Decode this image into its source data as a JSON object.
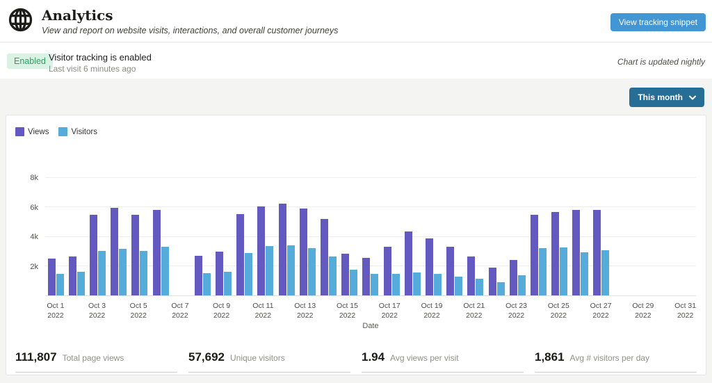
{
  "header": {
    "title": "Analytics",
    "subtitle": "View and report on website visits, interactions, and overall customer journeys",
    "tracking_button": "View tracking snippet"
  },
  "status_bar": {
    "badge": "Enabled",
    "message": "Visitor tracking is enabled",
    "last_visit": "Last visit 6 minutes ago",
    "note": "Chart is updated nightly"
  },
  "toolbar": {
    "range_selector": "This month"
  },
  "chart_data": {
    "type": "bar",
    "title": "",
    "xlabel": "Date",
    "ylabel": "",
    "ylim": [
      0,
      8000
    ],
    "grid": true,
    "legend_position": "top-left",
    "yticks": [
      {
        "value": 2000,
        "label": "2k"
      },
      {
        "value": 4000,
        "label": "4k"
      },
      {
        "value": 6000,
        "label": "6k"
      },
      {
        "value": 8000,
        "label": "8k"
      }
    ],
    "categories": [
      "Oct 1 2022",
      "Oct 2 2022",
      "Oct 3 2022",
      "Oct 4 2022",
      "Oct 5 2022",
      "Oct 6 2022",
      "Oct 7 2022",
      "Oct 8 2022",
      "Oct 9 2022",
      "Oct 10 2022",
      "Oct 11 2022",
      "Oct 12 2022",
      "Oct 13 2022",
      "Oct 14 2022",
      "Oct 15 2022",
      "Oct 16 2022",
      "Oct 17 2022",
      "Oct 18 2022",
      "Oct 19 2022",
      "Oct 20 2022",
      "Oct 21 2022",
      "Oct 22 2022",
      "Oct 23 2022",
      "Oct 24 2022",
      "Oct 25 2022",
      "Oct 26 2022",
      "Oct 27 2022",
      "Oct 28 2022",
      "Oct 29 2022",
      "Oct 30 2022",
      "Oct 31 2022"
    ],
    "x_ticks": [
      {
        "index": 0,
        "line1": "Oct 1",
        "line2": "2022"
      },
      {
        "index": 2,
        "line1": "Oct 3",
        "line2": "2022"
      },
      {
        "index": 4,
        "line1": "Oct 5",
        "line2": "2022"
      },
      {
        "index": 6,
        "line1": "Oct 7",
        "line2": "2022"
      },
      {
        "index": 8,
        "line1": "Oct 9",
        "line2": "2022"
      },
      {
        "index": 10,
        "line1": "Oct 11",
        "line2": "2022"
      },
      {
        "index": 12,
        "line1": "Oct 13",
        "line2": "2022"
      },
      {
        "index": 14,
        "line1": "Oct 15",
        "line2": "2022"
      },
      {
        "index": 16,
        "line1": "Oct 17",
        "line2": "2022"
      },
      {
        "index": 18,
        "line1": "Oct 19",
        "line2": "2022"
      },
      {
        "index": 20,
        "line1": "Oct 21",
        "line2": "2022"
      },
      {
        "index": 22,
        "line1": "Oct 23",
        "line2": "2022"
      },
      {
        "index": 24,
        "line1": "Oct 25",
        "line2": "2022"
      },
      {
        "index": 26,
        "line1": "Oct 27",
        "line2": "2022"
      },
      {
        "index": 28,
        "line1": "Oct 29",
        "line2": "2022"
      },
      {
        "index": 30,
        "line1": "Oct 31",
        "line2": "2022"
      }
    ],
    "series": [
      {
        "name": "Views",
        "color": "#6459c0",
        "values": [
          2500,
          2650,
          5500,
          5950,
          5500,
          5800,
          null,
          2700,
          3000,
          5550,
          6050,
          6250,
          5900,
          5200,
          2850,
          2550,
          3300,
          4350,
          3900,
          3300,
          2650,
          1900,
          2400,
          5500,
          5700,
          5800,
          5800,
          null,
          null,
          null,
          null
        ]
      },
      {
        "name": "Visitors",
        "color": "#55acdb",
        "values": [
          1450,
          1600,
          3050,
          3150,
          3050,
          3300,
          null,
          1500,
          1600,
          2900,
          3350,
          3400,
          3200,
          2650,
          1750,
          1450,
          1450,
          1550,
          1450,
          1300,
          1150,
          900,
          1350,
          3200,
          3250,
          2950,
          3100,
          null,
          null,
          null,
          null
        ]
      }
    ]
  },
  "stats": [
    {
      "value": "111,807",
      "label": "Total page views",
      "key": "total-page-views"
    },
    {
      "value": "57,692",
      "label": "Unique visitors",
      "key": "unique-visitors"
    },
    {
      "value": "1.94",
      "label": "Avg views per visit",
      "key": "avg-views-per-visit"
    },
    {
      "value": "1,861",
      "label": "Avg # visitors per day",
      "key": "avg-visitors-per-day"
    }
  ],
  "colors": {
    "views_bar": "#6459c0",
    "visitors_bar": "#55acdb",
    "primary_button": "#4196d3",
    "range_button": "#266e96",
    "badge_bg": "#d9f2e4",
    "badge_text": "#2f9e63"
  }
}
